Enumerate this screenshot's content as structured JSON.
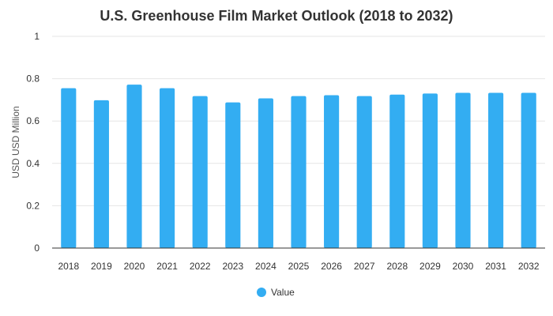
{
  "chart_data": {
    "type": "bar",
    "title": "U.S. Greenhouse Film Market Outlook (2018 to 2032)",
    "ylabel": "USD USD Million",
    "xlabel": "",
    "categories": [
      "2018",
      "2019",
      "2020",
      "2021",
      "2022",
      "2023",
      "2024",
      "2025",
      "2026",
      "2027",
      "2028",
      "2029",
      "2030",
      "2031",
      "2032"
    ],
    "series": [
      {
        "name": "Value",
        "color": "#33adf2",
        "values": [
          0.755,
          0.698,
          0.772,
          0.755,
          0.718,
          0.688,
          0.707,
          0.718,
          0.722,
          0.718,
          0.725,
          0.73,
          0.733,
          0.733,
          0.733
        ]
      }
    ],
    "ylim": [
      0,
      1
    ],
    "yticks": [
      "0",
      "0.2",
      "0.4",
      "0.6",
      "0.8",
      "1"
    ],
    "grid": true,
    "legend": "bottom-center"
  }
}
